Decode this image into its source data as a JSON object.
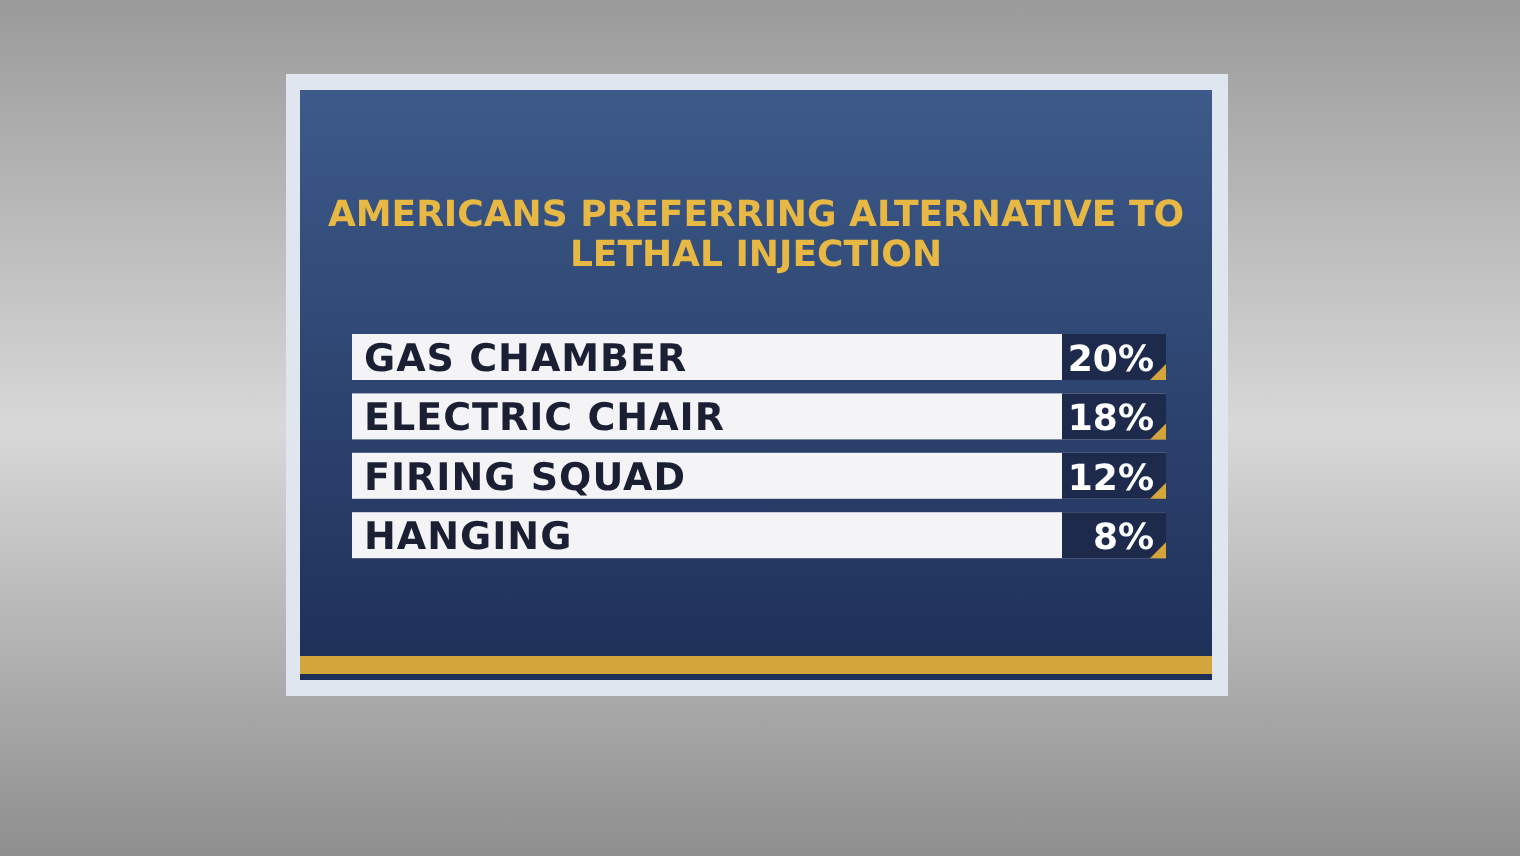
{
  "chart_data": {
    "type": "other",
    "title": "AMERICANS PREFERRING ALTERNATIVE TO\nLETHAL INJECTION",
    "categories": [
      "GAS CHAMBER",
      "ELECTRIC CHAIR",
      "FIRING SQUAD",
      "HANGING"
    ],
    "values": [
      20,
      18,
      12,
      8
    ],
    "value_labels": [
      "20%",
      "18%",
      "12%",
      "8%"
    ]
  }
}
